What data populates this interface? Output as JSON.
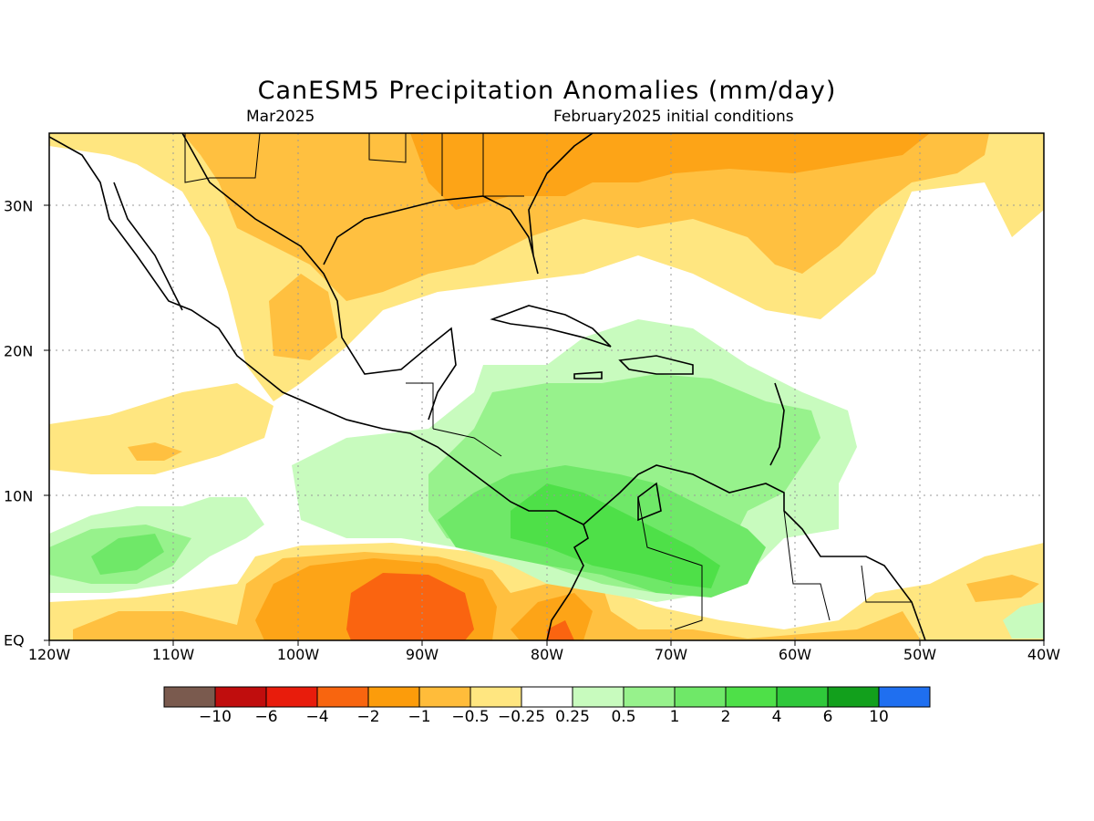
{
  "title": "CanESM5 Precipitation Anomalies (mm/day)",
  "subtitle_left": "Mar2025",
  "subtitle_right": "February2025 initial conditions",
  "map": {
    "lon_labels": [
      "120W",
      "110W",
      "100W",
      "90W",
      "80W",
      "70W",
      "60W",
      "50W",
      "40W"
    ],
    "lat_labels": [
      "30N",
      "20N",
      "10N",
      "EQ"
    ],
    "colors": {
      "neg_0_25_0_5": "#ffe680",
      "neg_0_5_1": "#ffc040",
      "neg_1_2": "#fda417",
      "neg_2_4": "#fa6410",
      "pos_0_25_0_5": "#c8fbbe",
      "pos_0_5_1": "#97f28c",
      "pos_1_2": "#6fe868",
      "pos_2_4": "#4ee048",
      "coast": "#000000",
      "grid": "#888888"
    }
  },
  "colorbar": {
    "colors": [
      "#7a5a4e",
      "#c00d0d",
      "#e81c0c",
      "#f8650f",
      "#fc9c0b",
      "#ffbc3a",
      "#ffe680",
      "#ffffff",
      "#c8fbbe",
      "#97f28c",
      "#6fe868",
      "#4ee048",
      "#2fc83a",
      "#12a01c",
      "#1f6ff0"
    ],
    "labels": [
      "−10",
      "−6",
      "−4",
      "−2",
      "−1",
      "−0.5",
      "−0.25",
      "0.25",
      "0.5",
      "1",
      "2",
      "4",
      "6",
      "10"
    ]
  }
}
